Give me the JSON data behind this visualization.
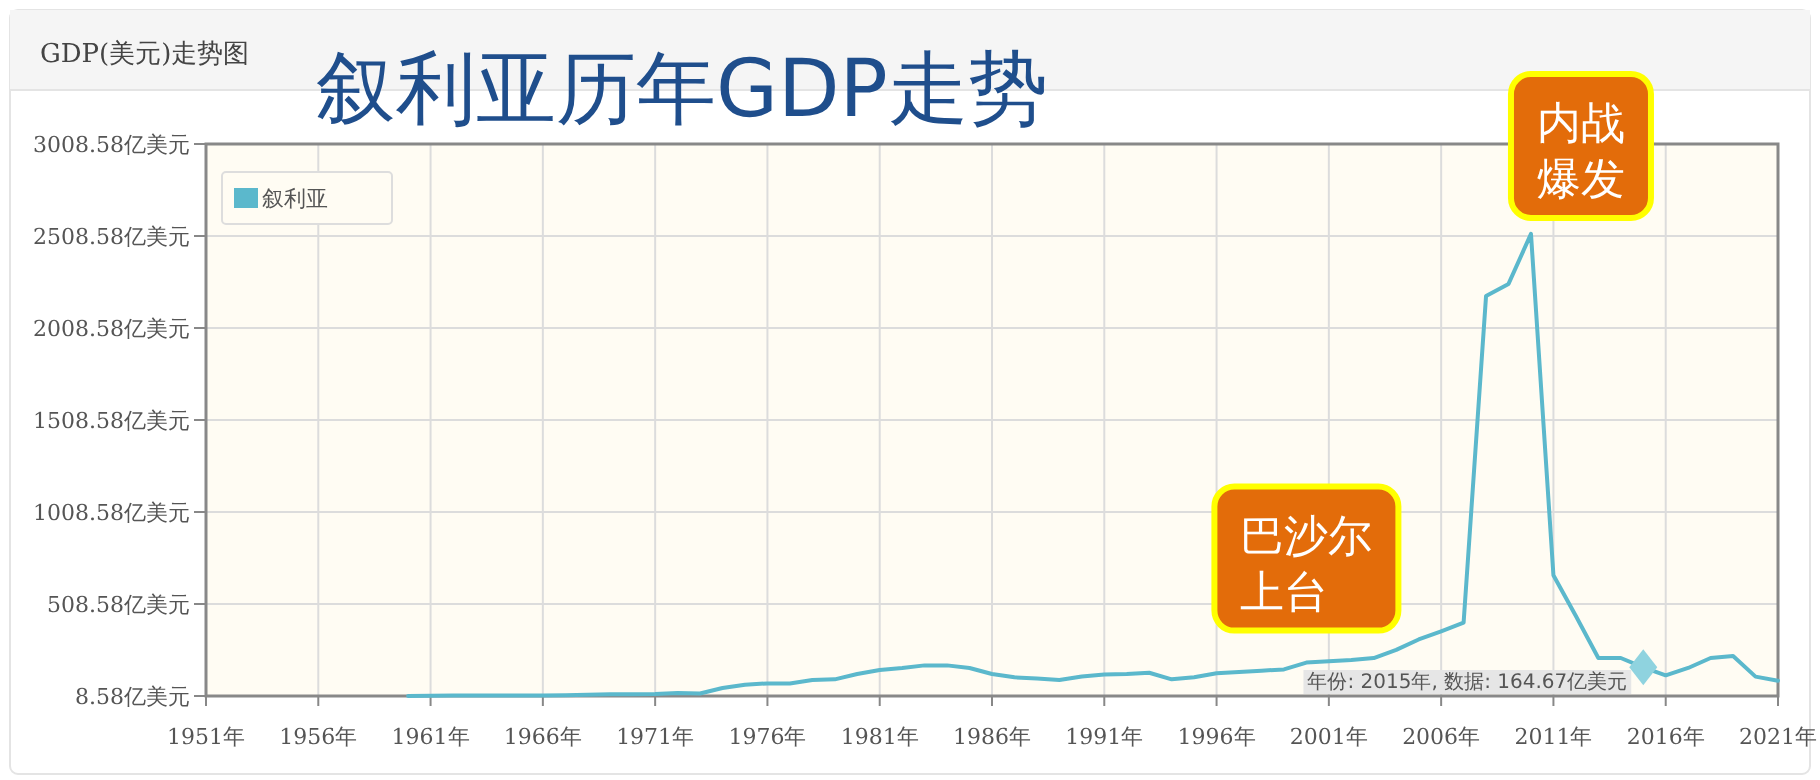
{
  "chart_data": {
    "type": "line",
    "title": "叙利亚历年GDP走势",
    "subtitle": "GDP(美元)走势图",
    "x": [
      1960,
      1961,
      1962,
      1963,
      1964,
      1965,
      1966,
      1967,
      1968,
      1969,
      1970,
      1971,
      1972,
      1973,
      1974,
      1975,
      1976,
      1977,
      1978,
      1979,
      1980,
      1981,
      1982,
      1983,
      1984,
      1985,
      1986,
      1987,
      1988,
      1989,
      1990,
      1991,
      1992,
      1993,
      1994,
      1995,
      1996,
      1997,
      1998,
      1999,
      2000,
      2001,
      2002,
      2003,
      2004,
      2005,
      2006,
      2007,
      2008,
      2009,
      2010,
      2011,
      2012,
      2013,
      2014,
      2015,
      2016,
      2017,
      2018,
      2019,
      2020,
      2021
    ],
    "series": [
      {
        "name": "叙利亚",
        "color": "#5bb8cc",
        "values": [
          9,
          10,
          11,
          11,
          12,
          12,
          12,
          13,
          15,
          18,
          18,
          20,
          25,
          22,
          52,
          70,
          77,
          77,
          95,
          99,
          128,
          150,
          161,
          175,
          175,
          161,
          128,
          110,
          103,
          96,
          114,
          125,
          128,
          135,
          99,
          110,
          132,
          139,
          146,
          153,
          190,
          197,
          204,
          215,
          259,
          316,
          360,
          407,
          2183,
          2248,
          2520,
          665,
          443,
          215,
          215,
          164.67,
          121,
          161,
          215,
          226,
          114,
          92
        ]
      }
    ],
    "xlim": [
      1951,
      2021
    ],
    "xticks": [
      {
        "value": 1951,
        "label": "1951年"
      },
      {
        "value": 1956,
        "label": "1956年"
      },
      {
        "value": 1961,
        "label": "1961年"
      },
      {
        "value": 1966,
        "label": "1966年"
      },
      {
        "value": 1971,
        "label": "1971年"
      },
      {
        "value": 1976,
        "label": "1976年"
      },
      {
        "value": 1981,
        "label": "1981年"
      },
      {
        "value": 1986,
        "label": "1986年"
      },
      {
        "value": 1991,
        "label": "1991年"
      },
      {
        "value": 1996,
        "label": "1996年"
      },
      {
        "value": 2001,
        "label": "2001年"
      },
      {
        "value": 2006,
        "label": "2006年"
      },
      {
        "value": 2011,
        "label": "2011年"
      },
      {
        "value": 2016,
        "label": "2016年"
      },
      {
        "value": 2021,
        "label": "2021年"
      }
    ],
    "ylim": [
      8.58,
      3008.58
    ],
    "yticks": [
      {
        "value": 8.58,
        "label": "8.58亿美元"
      },
      {
        "value": 508.58,
        "label": "508.58亿美元"
      },
      {
        "value": 1008.58,
        "label": "1008.58亿美元"
      },
      {
        "value": 1508.58,
        "label": "1508.58亿美元"
      },
      {
        "value": 2008.58,
        "label": "2008.58亿美元"
      },
      {
        "value": 2508.58,
        "label": "2508.58亿美元"
      },
      {
        "value": 3008.58,
        "label": "3008.58亿美元"
      }
    ],
    "annotations": [
      {
        "text": "内战爆发",
        "x": 2010,
        "y": 2520
      },
      {
        "text": "巴沙尔上台",
        "x": 2000,
        "y": 190
      },
      {
        "text": "年份: 2015年, 数据: 164.67亿美元",
        "x": 2015,
        "y": 164.67
      }
    ],
    "grid": true,
    "legend": "top left",
    "marker": "none",
    "line_style": "solid"
  }
}
